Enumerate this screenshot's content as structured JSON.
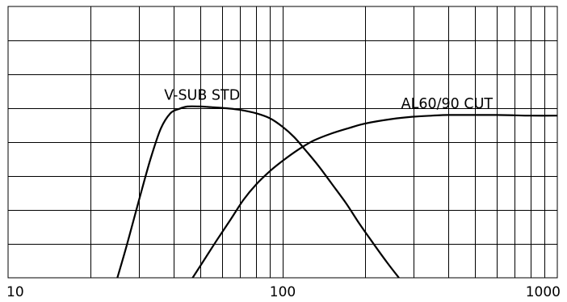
{
  "chart_data": {
    "type": "line",
    "x_scale": "log",
    "xlim": [
      10,
      1000
    ],
    "ylim": [
      0,
      8
    ],
    "grid": true,
    "y_gridlines": 8,
    "xticks": [
      10,
      100,
      1000
    ],
    "xtick_labels": [
      "10",
      "100",
      "1000"
    ],
    "title": "",
    "xlabel": "",
    "ylabel": "",
    "series": [
      {
        "name": "V-SUB STD",
        "x": [
          25,
          26.5,
          28,
          30,
          33,
          36,
          39,
          42,
          45,
          50,
          55,
          62,
          70,
          80,
          90,
          100,
          110,
          120,
          135,
          150,
          170,
          190,
          210,
          240,
          265
        ],
        "y": [
          0,
          0.7,
          1.4,
          2.3,
          3.5,
          4.4,
          4.85,
          4.98,
          5.05,
          5.05,
          5.03,
          5.0,
          4.95,
          4.85,
          4.7,
          4.45,
          4.15,
          3.8,
          3.3,
          2.8,
          2.2,
          1.6,
          1.1,
          0.45,
          0
        ]
      },
      {
        "name": "AL60/90 CUT",
        "x": [
          47,
          52,
          58,
          65,
          72,
          80,
          90,
          100,
          115,
          130,
          150,
          175,
          200,
          250,
          300,
          350,
          400,
          500,
          600,
          700,
          800,
          1000
        ],
        "y": [
          0,
          0.55,
          1.15,
          1.75,
          2.3,
          2.75,
          3.15,
          3.45,
          3.8,
          4.05,
          4.25,
          4.42,
          4.55,
          4.68,
          4.75,
          4.78,
          4.8,
          4.8,
          4.8,
          4.79,
          4.78,
          4.78
        ]
      }
    ],
    "labels": [
      {
        "text": "V-SUB STD",
        "series": 0
      },
      {
        "text": "AL60/90 CUT",
        "series": 1
      }
    ]
  }
}
